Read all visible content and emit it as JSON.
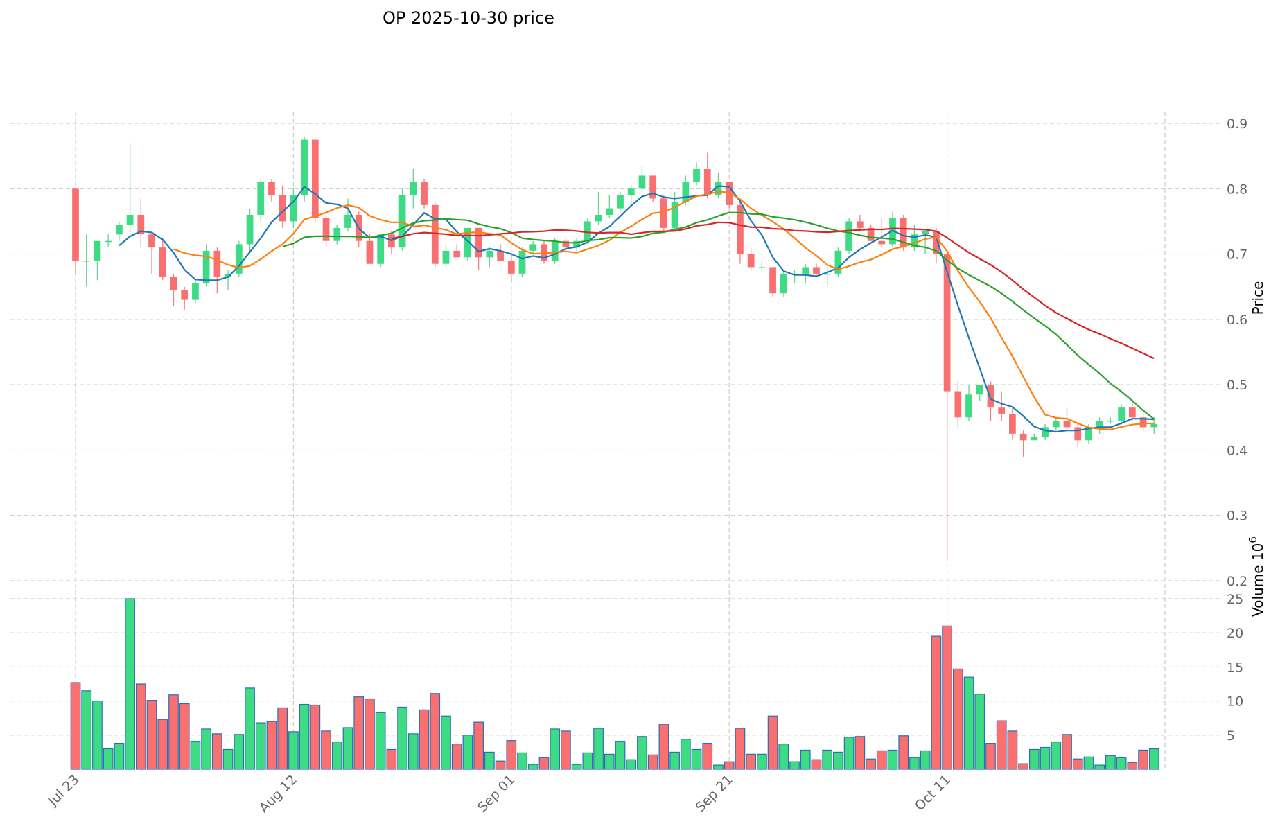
{
  "chart_data": {
    "type": "candlestick",
    "title": "OP  2025-10-30  price",
    "ylabel_price": "Price",
    "ylabel_volume": "Volume  10",
    "ylabel_volume_exp": "6",
    "price_ylim": [
      0.2,
      0.9
    ],
    "price_ticks": [
      0.2,
      0.3,
      0.4,
      0.5,
      0.6,
      0.7,
      0.8,
      0.9
    ],
    "price_tick_labels": [
      "0.2",
      "0.3",
      "0.4",
      "0.5",
      "0.6",
      "0.7",
      "0.8",
      "0.9"
    ],
    "volume_ylim": [
      0,
      25
    ],
    "volume_ticks": [
      5,
      10,
      15,
      20,
      25
    ],
    "volume_tick_labels": [
      "5",
      "10",
      "15",
      "20",
      "25"
    ],
    "x_ticks": [
      {
        "index": 0,
        "label": "Jul 23"
      },
      {
        "index": 20,
        "label": "Aug 12"
      },
      {
        "index": 40,
        "label": "Sep 01"
      },
      {
        "index": 60,
        "label": "Sep 21"
      },
      {
        "index": 80,
        "label": "Oct 11"
      },
      {
        "index": 100,
        "label": ""
      }
    ],
    "x_range": [
      -0.5,
      99.5
    ],
    "colors": {
      "up": "#3ddc84",
      "down": "#fa7070",
      "up_wick": "#6dd090",
      "down_wick": "#f08080",
      "vol_edge": "#2c6fb0",
      "ma5": "#1f77b4",
      "ma10": "#ff7f0e",
      "ma20": "#2ca02c",
      "ma30": "#d62728"
    },
    "ohlc": [
      [
        0.8,
        0.8,
        0.67,
        0.69
      ],
      [
        0.69,
        0.73,
        0.65,
        0.69
      ],
      [
        0.69,
        0.72,
        0.66,
        0.72
      ],
      [
        0.72,
        0.73,
        0.71,
        0.72
      ],
      [
        0.73,
        0.75,
        0.72,
        0.745
      ],
      [
        0.745,
        0.87,
        0.73,
        0.76
      ],
      [
        0.76,
        0.785,
        0.71,
        0.73
      ],
      [
        0.73,
        0.73,
        0.67,
        0.71
      ],
      [
        0.71,
        0.725,
        0.66,
        0.665
      ],
      [
        0.665,
        0.67,
        0.62,
        0.645
      ],
      [
        0.645,
        0.65,
        0.615,
        0.63
      ],
      [
        0.63,
        0.66,
        0.625,
        0.655
      ],
      [
        0.655,
        0.715,
        0.65,
        0.705
      ],
      [
        0.705,
        0.71,
        0.64,
        0.665
      ],
      [
        0.665,
        0.675,
        0.645,
        0.67
      ],
      [
        0.67,
        0.72,
        0.665,
        0.715
      ],
      [
        0.715,
        0.77,
        0.7,
        0.76
      ],
      [
        0.76,
        0.815,
        0.75,
        0.81
      ],
      [
        0.81,
        0.815,
        0.78,
        0.79
      ],
      [
        0.79,
        0.805,
        0.74,
        0.75
      ],
      [
        0.75,
        0.8,
        0.74,
        0.79
      ],
      [
        0.79,
        0.88,
        0.78,
        0.875
      ],
      [
        0.875,
        0.875,
        0.75,
        0.755
      ],
      [
        0.755,
        0.765,
        0.71,
        0.72
      ],
      [
        0.72,
        0.745,
        0.715,
        0.74
      ],
      [
        0.74,
        0.785,
        0.735,
        0.76
      ],
      [
        0.76,
        0.765,
        0.71,
        0.72
      ],
      [
        0.72,
        0.73,
        0.685,
        0.685
      ],
      [
        0.685,
        0.73,
        0.68,
        0.73
      ],
      [
        0.73,
        0.735,
        0.7,
        0.71
      ],
      [
        0.71,
        0.8,
        0.705,
        0.79
      ],
      [
        0.79,
        0.83,
        0.77,
        0.81
      ],
      [
        0.81,
        0.815,
        0.77,
        0.775
      ],
      [
        0.775,
        0.78,
        0.68,
        0.685
      ],
      [
        0.685,
        0.715,
        0.68,
        0.705
      ],
      [
        0.705,
        0.715,
        0.695,
        0.695
      ],
      [
        0.695,
        0.74,
        0.69,
        0.74
      ],
      [
        0.74,
        0.74,
        0.675,
        0.695
      ],
      [
        0.695,
        0.71,
        0.68,
        0.705
      ],
      [
        0.705,
        0.715,
        0.69,
        0.69
      ],
      [
        0.69,
        0.7,
        0.655,
        0.67
      ],
      [
        0.67,
        0.71,
        0.665,
        0.705
      ],
      [
        0.705,
        0.72,
        0.7,
        0.715
      ],
      [
        0.715,
        0.72,
        0.685,
        0.69
      ],
      [
        0.69,
        0.725,
        0.685,
        0.72
      ],
      [
        0.72,
        0.725,
        0.7,
        0.71
      ],
      [
        0.71,
        0.725,
        0.705,
        0.72
      ],
      [
        0.72,
        0.755,
        0.715,
        0.75
      ],
      [
        0.75,
        0.795,
        0.745,
        0.76
      ],
      [
        0.76,
        0.79,
        0.755,
        0.77
      ],
      [
        0.77,
        0.795,
        0.765,
        0.79
      ],
      [
        0.79,
        0.805,
        0.775,
        0.8
      ],
      [
        0.8,
        0.835,
        0.795,
        0.82
      ],
      [
        0.82,
        0.82,
        0.78,
        0.785
      ],
      [
        0.785,
        0.79,
        0.735,
        0.74
      ],
      [
        0.74,
        0.795,
        0.735,
        0.78
      ],
      [
        0.78,
        0.82,
        0.775,
        0.81
      ],
      [
        0.81,
        0.84,
        0.805,
        0.83
      ],
      [
        0.83,
        0.855,
        0.785,
        0.79
      ],
      [
        0.79,
        0.825,
        0.785,
        0.81
      ],
      [
        0.81,
        0.81,
        0.77,
        0.775
      ],
      [
        0.775,
        0.785,
        0.685,
        0.7
      ],
      [
        0.7,
        0.71,
        0.675,
        0.68
      ],
      [
        0.68,
        0.69,
        0.675,
        0.68
      ],
      [
        0.68,
        0.68,
        0.635,
        0.64
      ],
      [
        0.64,
        0.675,
        0.635,
        0.67
      ],
      [
        0.67,
        0.675,
        0.655,
        0.67
      ],
      [
        0.67,
        0.685,
        0.655,
        0.68
      ],
      [
        0.68,
        0.685,
        0.665,
        0.67
      ],
      [
        0.67,
        0.68,
        0.65,
        0.67
      ],
      [
        0.67,
        0.71,
        0.665,
        0.705
      ],
      [
        0.705,
        0.755,
        0.7,
        0.75
      ],
      [
        0.75,
        0.76,
        0.735,
        0.74
      ],
      [
        0.74,
        0.745,
        0.72,
        0.72
      ],
      [
        0.72,
        0.755,
        0.71,
        0.715
      ],
      [
        0.715,
        0.765,
        0.71,
        0.755
      ],
      [
        0.755,
        0.76,
        0.705,
        0.71
      ],
      [
        0.71,
        0.745,
        0.705,
        0.73
      ],
      [
        0.73,
        0.735,
        0.7,
        0.735
      ],
      [
        0.735,
        0.74,
        0.685,
        0.7
      ],
      [
        0.7,
        0.7,
        0.23,
        0.49
      ],
      [
        0.49,
        0.505,
        0.435,
        0.45
      ],
      [
        0.45,
        0.5,
        0.445,
        0.485
      ],
      [
        0.485,
        0.5,
        0.475,
        0.5
      ],
      [
        0.5,
        0.505,
        0.445,
        0.465
      ],
      [
        0.465,
        0.49,
        0.445,
        0.455
      ],
      [
        0.455,
        0.465,
        0.415,
        0.425
      ],
      [
        0.425,
        0.43,
        0.39,
        0.415
      ],
      [
        0.415,
        0.425,
        0.415,
        0.42
      ],
      [
        0.42,
        0.44,
        0.415,
        0.435
      ],
      [
        0.435,
        0.45,
        0.43,
        0.445
      ],
      [
        0.445,
        0.465,
        0.43,
        0.435
      ],
      [
        0.435,
        0.44,
        0.405,
        0.415
      ],
      [
        0.415,
        0.44,
        0.41,
        0.435
      ],
      [
        0.435,
        0.45,
        0.425,
        0.445
      ],
      [
        0.445,
        0.45,
        0.44,
        0.445
      ],
      [
        0.445,
        0.47,
        0.44,
        0.465
      ],
      [
        0.465,
        0.475,
        0.445,
        0.45
      ],
      [
        0.45,
        0.455,
        0.43,
        0.435
      ],
      [
        0.435,
        0.45,
        0.425,
        0.44
      ]
    ],
    "volume": [
      12.7,
      11.5,
      10.0,
      3.0,
      3.8,
      25.0,
      12.5,
      10.1,
      7.3,
      10.9,
      9.6,
      4.1,
      5.9,
      5.2,
      2.9,
      5.1,
      11.9,
      6.8,
      7.0,
      9.0,
      5.5,
      9.5,
      9.4,
      5.6,
      4.0,
      6.1,
      10.6,
      10.3,
      8.3,
      2.9,
      9.1,
      5.2,
      8.7,
      11.1,
      7.8,
      3.7,
      5.0,
      6.9,
      2.5,
      1.2,
      4.2,
      2.4,
      0.7,
      1.7,
      5.9,
      5.6,
      0.7,
      2.4,
      6.0,
      2.2,
      4.1,
      1.4,
      4.8,
      2.1,
      6.6,
      2.5,
      4.4,
      2.9,
      3.8,
      0.6,
      1.1,
      6.0,
      2.2,
      2.2,
      7.8,
      3.7,
      1.1,
      2.8,
      1.4,
      2.8,
      2.5,
      4.7,
      4.8,
      1.5,
      2.7,
      2.8,
      4.9,
      1.7,
      2.7,
      19.5,
      21.0,
      14.7,
      13.5,
      11.0,
      3.8,
      7.1,
      5.6,
      0.8,
      2.9,
      3.2,
      4.0,
      5.1,
      1.5,
      1.8,
      0.6,
      2.0,
      1.7,
      1.0,
      2.8,
      3.0
    ],
    "moving_averages": [
      {
        "name": "ma5",
        "period": 5
      },
      {
        "name": "ma10",
        "period": 10
      },
      {
        "name": "ma20",
        "period": 20
      },
      {
        "name": "ma30",
        "period": 30
      }
    ]
  }
}
